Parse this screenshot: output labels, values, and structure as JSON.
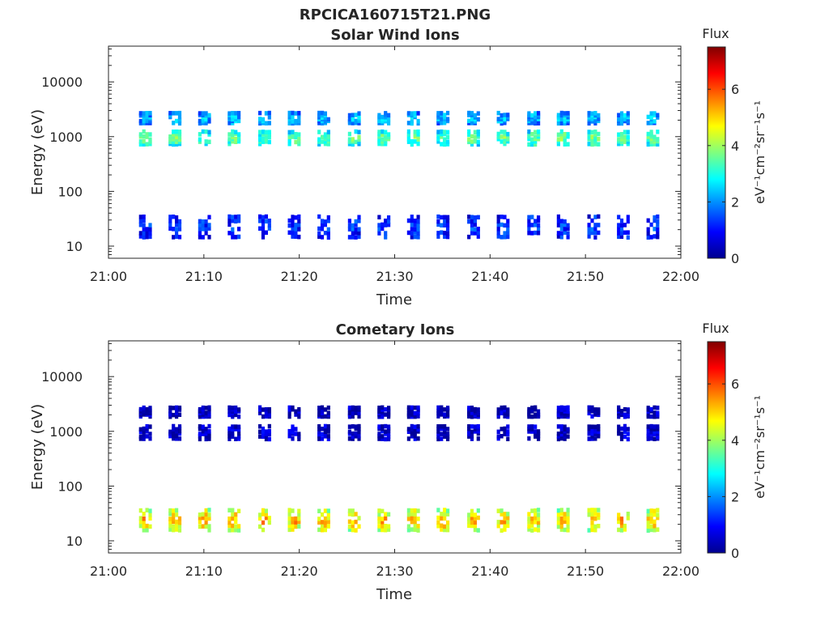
{
  "figure": {
    "title": "RPCICA160715T21.PNG"
  },
  "colorbar": {
    "title": "Flux",
    "units_label": "eV⁻¹cm⁻²sr⁻¹s⁻¹",
    "ticks": [
      "0",
      "2",
      "4",
      "6"
    ],
    "range": [
      0,
      7.5
    ],
    "colormap": "jet"
  },
  "chart_data": [
    {
      "type": "heatmap",
      "title": "Solar Wind Ions",
      "xlabel": "Time",
      "ylabel": "Energy (eV)",
      "x_ticks": [
        "21:00",
        "21:10",
        "21:20",
        "21:30",
        "21:40",
        "21:50",
        "22:00"
      ],
      "xlim_minutes_after": [
        0,
        60
      ],
      "x_reference": "21:00",
      "y_ticks": [
        "10",
        "100",
        "1000",
        "10000"
      ],
      "ylim": [
        6,
        45000
      ],
      "y_scale": "log",
      "scan_times_min": [
        3.8,
        6.9,
        10.0,
        13.1,
        16.3,
        19.4,
        22.5,
        25.7,
        28.8,
        31.9,
        35.0,
        38.2,
        41.3,
        44.5,
        47.6,
        50.8,
        53.9,
        57.0
      ],
      "bands": [
        {
          "name": "",
          "energy_range": [
            700,
            1300
          ],
          "flux_level": 3.6
        },
        {
          "name": "",
          "energy_range": [
            1700,
            2800
          ],
          "flux_level": 2.4
        },
        {
          "name": "",
          "energy_range": [
            14,
            38
          ],
          "flux_level": 1.3
        }
      ],
      "notes": "Periodic bursts near 1000 eV (green/cyan), near 2000 eV (cyan/blue) and 15–35 eV (blue), one burst per scan."
    },
    {
      "type": "heatmap",
      "title": "Cometary Ions",
      "xlabel": "Time",
      "ylabel": "Energy (eV)",
      "x_ticks": [
        "21:00",
        "21:10",
        "21:20",
        "21:30",
        "21:40",
        "21:50",
        "22:00"
      ],
      "xlim_minutes_after": [
        0,
        60
      ],
      "x_reference": "21:00",
      "y_ticks": [
        "10",
        "100",
        "1000",
        "10000"
      ],
      "ylim": [
        6,
        45000
      ],
      "y_scale": "log",
      "scan_times_min": [
        3.8,
        6.9,
        10.0,
        13.1,
        16.3,
        19.4,
        22.5,
        25.7,
        28.8,
        31.9,
        35.0,
        38.2,
        41.3,
        44.5,
        47.6,
        50.8,
        53.9,
        57.0
      ],
      "bands": [
        {
          "name": "",
          "energy_range": [
            15,
            40
          ],
          "flux_level": 5.2
        },
        {
          "name": "",
          "energy_range": [
            700,
            1300
          ],
          "flux_level": 0.5
        },
        {
          "name": "",
          "energy_range": [
            1800,
            2800
          ],
          "flux_level": 0.4
        }
      ],
      "notes": "Strong bursts at 15–40 eV (yellow/orange/red core), weak dark-blue traces near 1000 and 2000 eV."
    }
  ]
}
